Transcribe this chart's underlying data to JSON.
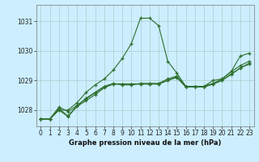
{
  "title": "Graphe pression niveau de la mer (hPa)",
  "background_color": "#cceeff",
  "grid_color": "#aacccc",
  "line_color": "#2d6e2d",
  "xlim": [
    -0.5,
    23.5
  ],
  "ylim": [
    1027.45,
    1031.55
  ],
  "yticks": [
    1028,
    1029,
    1030,
    1031
  ],
  "xticks": [
    0,
    1,
    2,
    3,
    4,
    5,
    6,
    7,
    8,
    9,
    10,
    11,
    12,
    13,
    14,
    15,
    16,
    17,
    18,
    19,
    20,
    21,
    22,
    23
  ],
  "series": [
    [
      1027.7,
      1027.7,
      1028.0,
      1028.0,
      1028.25,
      1028.6,
      1028.85,
      1029.05,
      1029.35,
      1029.75,
      1030.25,
      1031.1,
      1031.1,
      1030.85,
      1029.65,
      1029.25,
      1028.8,
      1028.8,
      1028.8,
      1029.0,
      1029.05,
      1029.3,
      1029.82,
      1029.92
    ],
    [
      1027.7,
      1027.7,
      1028.05,
      1027.8,
      1028.15,
      1028.4,
      1028.6,
      1028.8,
      1028.9,
      1028.85,
      1028.85,
      1028.9,
      1028.9,
      1028.9,
      1029.05,
      1029.15,
      1028.8,
      1028.8,
      1028.8,
      1028.9,
      1029.05,
      1029.3,
      1029.5,
      1029.65
    ],
    [
      1027.7,
      1027.7,
      1028.1,
      1027.95,
      1028.15,
      1028.38,
      1028.58,
      1028.78,
      1028.88,
      1028.88,
      1028.88,
      1028.88,
      1028.88,
      1028.88,
      1029.0,
      1029.12,
      1028.78,
      1028.78,
      1028.78,
      1028.88,
      1029.0,
      1029.22,
      1029.42,
      1029.58
    ],
    [
      1027.7,
      1027.7,
      1028.0,
      1027.78,
      1028.12,
      1028.32,
      1028.52,
      1028.75,
      1028.88,
      1028.88,
      1028.88,
      1028.88,
      1028.88,
      1028.88,
      1029.0,
      1029.1,
      1028.78,
      1028.78,
      1028.78,
      1028.88,
      1029.0,
      1029.2,
      1029.42,
      1029.55
    ]
  ],
  "title_fontsize": 6.5,
  "tick_fontsize": 5.5,
  "xlabel_fontsize": 6.0
}
